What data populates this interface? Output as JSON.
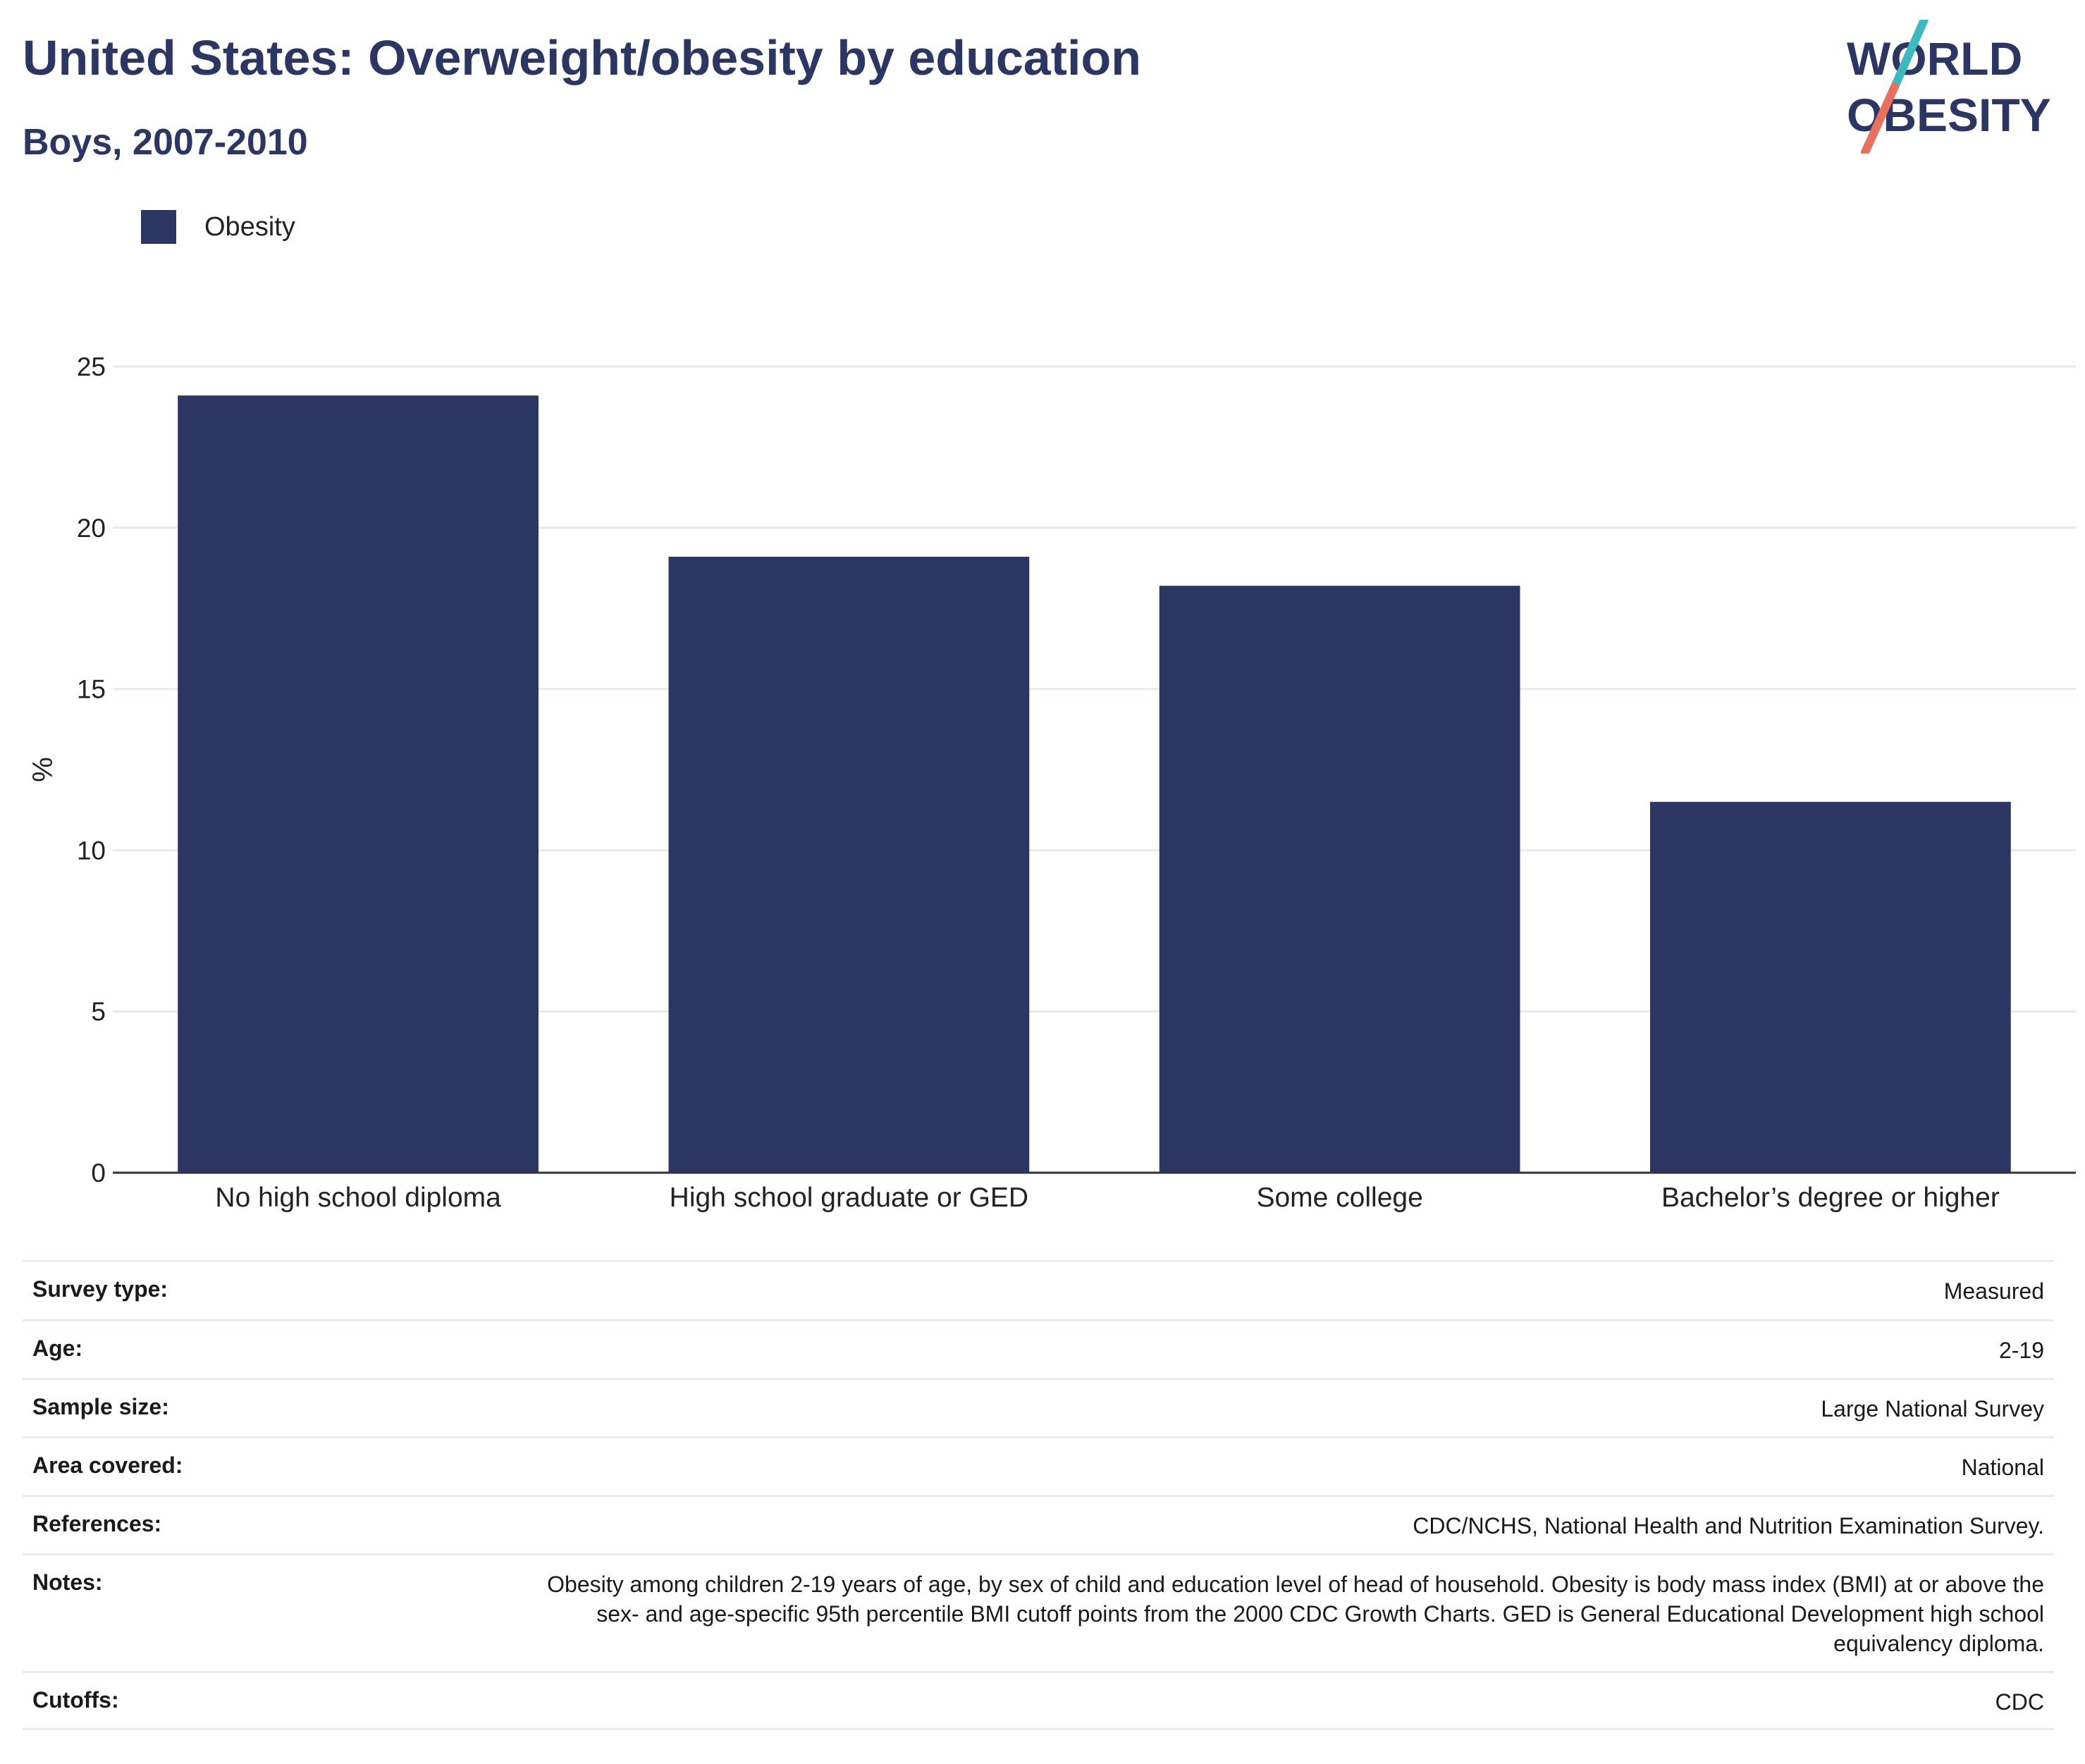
{
  "header": {
    "title": "United States: Overweight/obesity by education",
    "subtitle": "Boys, 2007-2010"
  },
  "logo": {
    "line1": "WORLD",
    "line2": "OBESITY"
  },
  "colors": {
    "bar": "#2b3663",
    "grid": "#e6e9ee",
    "axis": "#333333",
    "logo_teal": "#3fb8c0",
    "logo_coral": "#e8705f"
  },
  "chart_data": {
    "type": "bar",
    "title": "United States: Overweight/obesity by education",
    "subtitle": "Boys, 2007-2010",
    "categories": [
      "No high school diploma",
      "High school graduate or GED",
      "Some college",
      "Bachelor’s degree or higher"
    ],
    "series": [
      {
        "name": "Obesity",
        "values": [
          24.1,
          19.1,
          18.2,
          11.5
        ]
      }
    ],
    "ylabel": "%",
    "xlabel": "",
    "ylim": [
      0,
      25
    ],
    "yticks": [
      0,
      5,
      10,
      15,
      20,
      25
    ],
    "grid": true,
    "legend_position": "top-left"
  },
  "metadata": [
    {
      "label": "Survey type:",
      "value": "Measured"
    },
    {
      "label": "Age:",
      "value": "2-19"
    },
    {
      "label": "Sample size:",
      "value": "Large National Survey"
    },
    {
      "label": "Area covered:",
      "value": "National"
    },
    {
      "label": "References:",
      "value": "CDC/NCHS, National Health and Nutrition Examination Survey."
    },
    {
      "label": "Notes:",
      "value": "Obesity among children 2-19 years of age, by sex of child and education level of head of household. Obesity is body mass index (BMI) at or above the sex- and age-specific 95th percentile BMI cutoff points from the 2000 CDC Growth Charts. GED is General Educational Development high school equivalency diploma."
    },
    {
      "label": "Cutoffs:",
      "value": "CDC"
    }
  ]
}
